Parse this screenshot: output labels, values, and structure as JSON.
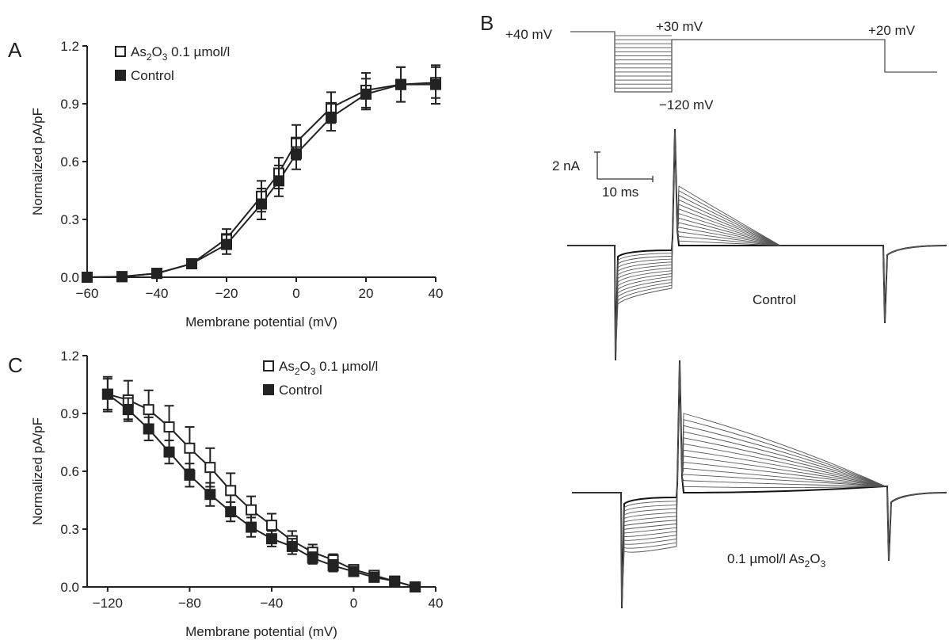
{
  "panels": {
    "a": "A",
    "b": "B",
    "c": "C"
  },
  "chart_data": [
    {
      "panel": "A",
      "type": "scatter",
      "xlabel": "Membrane potential (mV)",
      "ylabel": "Normalized pA/pF",
      "xlim": [
        -60,
        40
      ],
      "ylim": [
        0,
        1.2
      ],
      "xticks": [
        -60,
        -40,
        -20,
        0,
        20,
        40
      ],
      "xtick_labels": [
        "−60",
        "−40",
        "−20",
        "0",
        "20",
        "40"
      ],
      "yticks": [
        0,
        0.3,
        0.6,
        0.9,
        1.2
      ],
      "ytick_labels": [
        "0.0",
        "0.3",
        "0.6",
        "0.9",
        "1.2"
      ],
      "legend": "top-left",
      "x": [
        -60,
        -50,
        -40,
        -30,
        -20,
        -10,
        -5,
        0,
        10,
        20,
        30,
        40
      ],
      "series": [
        {
          "name": "As2O3 0.1 µmol/l",
          "marker": "open-square",
          "values": [
            0,
            0.003,
            0.02,
            0.07,
            0.2,
            0.42,
            0.54,
            0.7,
            0.88,
            0.97,
            1.0,
            1.01
          ],
          "errors": [
            0,
            0.01,
            0.01,
            0.02,
            0.05,
            0.08,
            0.08,
            0.09,
            0.08,
            0.09,
            0.09,
            0.08
          ]
        },
        {
          "name": "Control",
          "marker": "filled-square",
          "values": [
            0,
            0.003,
            0.02,
            0.07,
            0.17,
            0.38,
            0.5,
            0.64,
            0.83,
            0.95,
            1.0,
            1.0
          ],
          "errors": [
            0,
            0.01,
            0.01,
            0.02,
            0.05,
            0.08,
            0.08,
            0.08,
            0.07,
            0.08,
            0.09,
            0.1
          ]
        }
      ]
    },
    {
      "panel": "C",
      "type": "scatter",
      "xlabel": "Membrane potential (mV)",
      "ylabel": "Normalized pA/pF",
      "xlim": [
        -130,
        40
      ],
      "ylim": [
        0,
        1.2
      ],
      "xticks": [
        -120,
        -80,
        -40,
        0,
        40
      ],
      "xtick_labels": [
        "−120",
        "−80",
        "−40",
        "0",
        "40"
      ],
      "yticks": [
        0,
        0.3,
        0.6,
        0.9,
        1.2
      ],
      "ytick_labels": [
        "0.0",
        "0.3",
        "0.6",
        "0.9",
        "1.2"
      ],
      "legend": "top-right",
      "x": [
        -120,
        -110,
        -100,
        -90,
        -80,
        -70,
        -60,
        -50,
        -40,
        -30,
        -20,
        -10,
        0,
        10,
        20,
        30
      ],
      "series": [
        {
          "name": "As2O3 0.1 µmol/l",
          "marker": "open-square",
          "values": [
            1.0,
            0.97,
            0.92,
            0.83,
            0.72,
            0.62,
            0.5,
            0.4,
            0.32,
            0.24,
            0.18,
            0.14,
            0.09,
            0.06,
            0.03,
            0.0
          ],
          "errors": [
            0.09,
            0.1,
            0.1,
            0.11,
            0.11,
            0.1,
            0.09,
            0.07,
            0.06,
            0.05,
            0.04,
            0.03,
            0.02,
            0.02,
            0.01,
            0
          ]
        },
        {
          "name": "Control",
          "marker": "filled-square",
          "values": [
            1.0,
            0.92,
            0.82,
            0.7,
            0.58,
            0.48,
            0.39,
            0.31,
            0.25,
            0.21,
            0.15,
            0.11,
            0.08,
            0.05,
            0.03,
            0.0
          ],
          "errors": [
            0.08,
            0.06,
            0.06,
            0.06,
            0.06,
            0.06,
            0.05,
            0.05,
            0.04,
            0.04,
            0.03,
            0.03,
            0.02,
            0.02,
            0.01,
            0
          ]
        }
      ]
    }
  ],
  "protocol": {
    "hold_label": "+40 mV",
    "step_label": "+30 mV",
    "test_label": "+20 mV",
    "min_label": "−120 mV"
  },
  "scalebar": {
    "current_label": "2 nA",
    "time_label": "10 ms"
  },
  "traces": {
    "control_label": "Control",
    "arsenic_label_prefix": "0.1 µmol/l As",
    "arsenic_label_sub1": "2",
    "arsenic_label_mid": "O",
    "arsenic_label_sub2": "3"
  },
  "legend": {
    "as_prefix": "As",
    "as_sub1": "2",
    "as_mid": "O",
    "as_sub2": "3",
    "as_suffix": " 0.1 µmol/l",
    "control": "Control"
  }
}
